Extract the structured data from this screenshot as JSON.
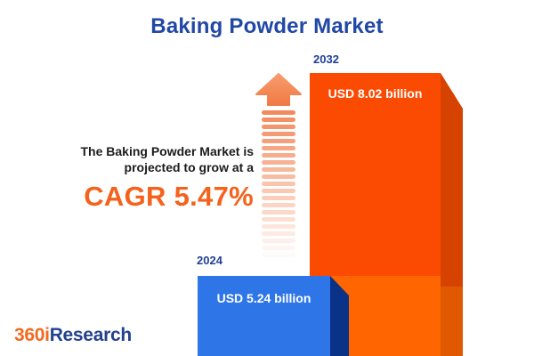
{
  "title": "Baking Powder Market",
  "headline": {
    "line1": "The Baking Powder Market is",
    "line2": "projected to grow at a",
    "cagr": "CAGR 5.47%"
  },
  "chart_data": {
    "type": "bar",
    "title": "Baking Powder Market",
    "categories": [
      "2024",
      "2032"
    ],
    "values": [
      5.24,
      8.02
    ],
    "unit": "USD billion",
    "value_labels": [
      "USD 5.24 billion",
      "USD 8.02 billion"
    ],
    "annotation": "CAGR 5.47%",
    "growth_rate_percent": 5.47,
    "grid": false,
    "legend_position": "none",
    "bar_style": "3d-extruded"
  },
  "bars": [
    {
      "year": "2024",
      "label": "USD 5.24 billion",
      "front_color": "#2e76e8",
      "side_color": "#0a3286"
    },
    {
      "year": "2032",
      "label": "USD 8.02 billion",
      "front_color": "#fb4a02",
      "side_color": "#d64300"
    }
  ],
  "icons": {
    "growth_arrow": "striped-up-arrow"
  },
  "colors": {
    "title_blue": "#2148a5",
    "accent_orange": "#f4621c",
    "year_label_blue": "#1f4098",
    "text_dark": "#1c1c1c",
    "bar_orange_top": "#fb4a02",
    "bar_orange_bottom": "#ff6601",
    "bar_orange_side": "#d64300",
    "bar_blue": "#2e76e8",
    "bar_blue_side": "#0a3286",
    "arrow_orange": "#f28455",
    "background": "#ffffff"
  },
  "logo": {
    "prefix": "360i",
    "suffix": "Research"
  }
}
